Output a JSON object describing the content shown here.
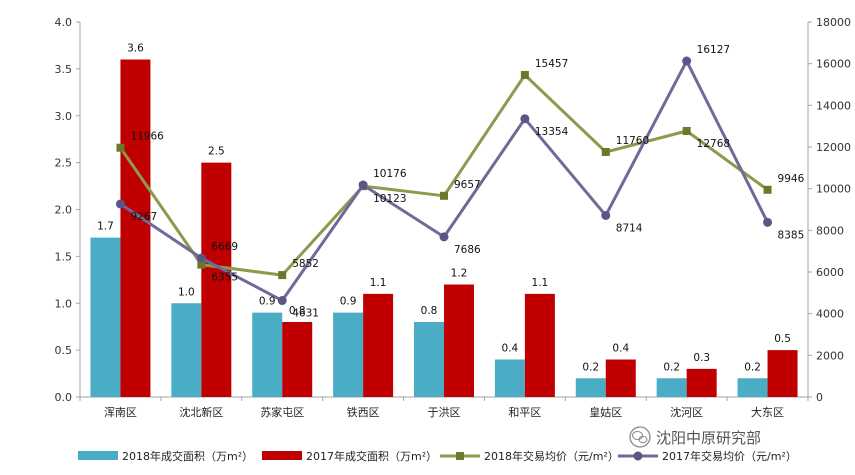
{
  "chart_data": {
    "type": "bar",
    "categories": [
      "浑南区",
      "沈北新区",
      "苏家屯区",
      "铁西区",
      "于洪区",
      "和平区",
      "皇姑区",
      "沈河区",
      "大东区"
    ],
    "bar_series": [
      {
        "name": "2018年成交面积（万m²）",
        "color": "#4bacc6",
        "values": [
          1.7,
          1.0,
          0.9,
          0.9,
          0.8,
          0.4,
          0.2,
          0.2,
          0.2
        ],
        "value_labels": [
          "1.7",
          "1.0",
          "0.9",
          "0.9",
          "0.8",
          "0.4",
          "0.2",
          "0.2",
          "0.2"
        ]
      },
      {
        "name": "2017年成交面积（万m²）",
        "color": "#c00000",
        "values": [
          3.6,
          2.5,
          0.8,
          1.1,
          1.2,
          1.1,
          0.4,
          0.3,
          0.5
        ],
        "value_labels": [
          "3.6",
          "2.5",
          "0.8",
          "1.1",
          "1.2",
          "1.1",
          "0.4",
          "0.3",
          "0.5"
        ]
      }
    ],
    "line_series": [
      {
        "name": "2018年交易均价（元/m²）",
        "color": "#8c9a4e",
        "marker": "square",
        "values": [
          11966,
          6355,
          5852,
          10123,
          9657,
          15457,
          11760,
          12768,
          9946
        ],
        "value_labels": [
          "11966",
          "6355",
          "5852",
          "10123",
          "9657",
          "15457",
          "11760",
          "12768",
          "9946"
        ]
      },
      {
        "name": "2017年交易均价（元/m²）",
        "color": "#6e6a9a",
        "marker": "circle",
        "values": [
          9267,
          6669,
          4631,
          10176,
          7686,
          13354,
          8714,
          16127,
          8385
        ],
        "value_labels": [
          "9267",
          "6669",
          "4631",
          "10176",
          "7686",
          "13354",
          "8714",
          "16127",
          "8385"
        ]
      }
    ],
    "y_left": {
      "min": 0,
      "max": 4,
      "ticks": [
        "0.0",
        "0.5",
        "1.0",
        "1.5",
        "2.0",
        "2.5",
        "3.0",
        "3.5",
        "4.0"
      ]
    },
    "y_right": {
      "min": 0,
      "max": 18000,
      "ticks": [
        "0",
        "2000",
        "4000",
        "6000",
        "8000",
        "10000",
        "12000",
        "14000",
        "16000",
        "18000"
      ]
    },
    "grid": false,
    "legend_position": "bottom"
  },
  "watermark": {
    "text": "沈阳中原研究部",
    "icon": "wechat-icon"
  }
}
